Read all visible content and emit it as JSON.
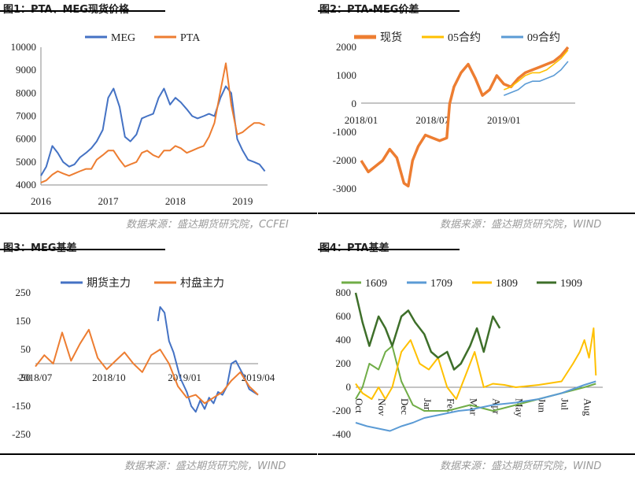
{
  "panels": {
    "p1": {
      "title": "图1：PTA、MEG现货价格",
      "source": "数据来源：盛达期货研究院，CCFEI"
    },
    "p2": {
      "title": "图2：PTA-MEG价差",
      "source": "数据来源：盛达期货研究院，WIND"
    },
    "p3": {
      "title": "图3：MEG基差",
      "source": "数据来源：盛达期货研究院，WIND"
    },
    "p4": {
      "title": "图4：PTA基差",
      "source": "数据来源：盛达期货研究院，WIND"
    }
  },
  "colors": {
    "blue": "#4472c4",
    "orange": "#ed7d31",
    "gold": "#ffc000",
    "lightblue": "#5b9bd5",
    "green": "#70ad47",
    "darkgreen": "#3e6f2a"
  },
  "chart_data": [
    {
      "type": "line",
      "title": "",
      "x_ticks": [
        "2016",
        "2017",
        "2018",
        "2019"
      ],
      "ylim": [
        4000,
        10000
      ],
      "y_ticks": [
        4000,
        5000,
        6000,
        7000,
        8000,
        9000,
        10000
      ],
      "legend_position": "top",
      "x": [
        2016.0,
        2016.08,
        2016.17,
        2016.25,
        2016.33,
        2016.42,
        2016.5,
        2016.58,
        2016.67,
        2016.75,
        2016.83,
        2016.92,
        2017.0,
        2017.08,
        2017.17,
        2017.25,
        2017.33,
        2017.42,
        2017.5,
        2017.58,
        2017.67,
        2017.75,
        2017.83,
        2017.92,
        2018.0,
        2018.08,
        2018.17,
        2018.25,
        2018.33,
        2018.42,
        2018.5,
        2018.58,
        2018.67,
        2018.75,
        2018.83,
        2018.92,
        2019.0,
        2019.08,
        2019.17,
        2019.25,
        2019.33
      ],
      "series": [
        {
          "name": "MEG",
          "values": [
            4400,
            4800,
            5700,
            5400,
            5000,
            4800,
            4900,
            5200,
            5400,
            5600,
            5900,
            6400,
            7800,
            8200,
            7400,
            6100,
            5900,
            6200,
            6900,
            7000,
            7100,
            7800,
            8200,
            7500,
            7800,
            7600,
            7300,
            7000,
            6900,
            7000,
            7100,
            7000,
            7800,
            8300,
            8000,
            6000,
            5500,
            5100,
            5000,
            4900,
            4600
          ]
        },
        {
          "name": "PTA",
          "values": [
            4100,
            4200,
            4450,
            4600,
            4500,
            4400,
            4500,
            4600,
            4700,
            4700,
            5100,
            5300,
            5500,
            5500,
            5100,
            4800,
            4900,
            5000,
            5400,
            5500,
            5300,
            5200,
            5500,
            5500,
            5700,
            5600,
            5400,
            5500,
            5600,
            5700,
            6100,
            6700,
            8100,
            9300,
            7500,
            6200,
            6300,
            6500,
            6700,
            6700,
            6600
          ]
        }
      ]
    },
    {
      "type": "line",
      "title": "",
      "x_ticks": [
        "2018/01",
        "2018/07",
        "2019/01"
      ],
      "ylim": [
        -3000,
        2000
      ],
      "y_ticks": [
        -3000,
        -2000,
        -1000,
        0,
        1000,
        2000
      ],
      "legend_position": "top",
      "series": [
        {
          "name": "现货",
          "x": [
            0,
            0.05,
            0.1,
            0.15,
            0.2,
            0.25,
            0.3,
            0.33,
            0.36,
            0.4,
            0.45,
            0.5,
            0.55,
            0.6,
            0.62,
            0.65,
            0.7,
            0.75,
            0.8,
            0.85,
            0.9,
            0.95,
            1.0,
            1.05,
            1.1,
            1.15,
            1.2,
            1.25,
            1.3,
            1.35,
            1.4,
            1.45
          ],
          "values": [
            -2000,
            -2400,
            -2200,
            -2000,
            -1600,
            -1900,
            -2800,
            -2900,
            -2000,
            -1500,
            -1100,
            -1200,
            -1300,
            -1200,
            0,
            600,
            1100,
            1400,
            900,
            300,
            500,
            1000,
            700,
            600,
            900,
            1100,
            1200,
            1300,
            1400,
            1500,
            1700,
            2000
          ]
        },
        {
          "name": "05合约",
          "x": [
            1.0,
            1.05,
            1.1,
            1.15,
            1.2,
            1.25,
            1.3,
            1.35,
            1.4,
            1.45
          ],
          "values": [
            500,
            600,
            800,
            1000,
            1100,
            1100,
            1200,
            1400,
            1600,
            1900
          ]
        },
        {
          "name": "09合约",
          "x": [
            1.0,
            1.05,
            1.1,
            1.15,
            1.2,
            1.25,
            1.3,
            1.35,
            1.4,
            1.45
          ],
          "values": [
            300,
            400,
            500,
            700,
            800,
            800,
            900,
            1000,
            1200,
            1500
          ]
        }
      ],
      "x_tick_positions": [
        0.0,
        0.5,
        1.0
      ]
    },
    {
      "type": "line",
      "title": "",
      "x_ticks": [
        "2018/07",
        "2018/10",
        "2019/01",
        "2019/04"
      ],
      "ylim": [
        -250,
        250
      ],
      "y_ticks": [
        -250,
        -150,
        -50,
        50,
        150,
        250
      ],
      "legend_position": "top",
      "series": [
        {
          "name": "期货主力",
          "x": [
            0.55,
            0.56,
            0.58,
            0.6,
            0.62,
            0.65,
            0.68,
            0.7,
            0.72,
            0.74,
            0.76,
            0.78,
            0.8,
            0.82,
            0.84,
            0.86,
            0.88,
            0.9,
            0.92,
            0.94,
            0.96,
            0.98,
            1.0
          ],
          "values": [
            150,
            200,
            180,
            80,
            40,
            -50,
            -100,
            -150,
            -170,
            -130,
            -160,
            -120,
            -140,
            -100,
            -110,
            -80,
            0,
            10,
            -20,
            -50,
            -90,
            -100,
            -110
          ]
        },
        {
          "name": "村盘主力",
          "x": [
            0,
            0.04,
            0.08,
            0.12,
            0.16,
            0.2,
            0.24,
            0.28,
            0.32,
            0.36,
            0.4,
            0.44,
            0.48,
            0.52,
            0.56,
            0.6,
            0.64,
            0.68,
            0.72,
            0.76,
            0.8,
            0.84,
            0.88,
            0.92,
            0.96,
            1.0
          ],
          "values": [
            -10,
            30,
            0,
            110,
            10,
            70,
            120,
            20,
            -20,
            10,
            40,
            0,
            -30,
            30,
            50,
            0,
            -80,
            -120,
            -110,
            -140,
            -120,
            -100,
            -60,
            -30,
            -80,
            -110
          ]
        }
      ],
      "x_tick_positions": [
        0.0,
        0.33,
        0.67,
        1.0
      ]
    },
    {
      "type": "line",
      "title": "",
      "x_ticks": [
        "Oct",
        "Nov",
        "Dec",
        "Jan",
        "Feb",
        "Mar",
        "Apr",
        "May",
        "Jun",
        "Jul",
        "Aug"
      ],
      "ylim": [
        -400,
        800
      ],
      "y_ticks": [
        -400,
        -200,
        0,
        200,
        400,
        600,
        800
      ],
      "legend_position": "top",
      "series": [
        {
          "name": "1609",
          "x": [
            0,
            0.3,
            0.6,
            1.0,
            1.3,
            1.6,
            2.0,
            2.5,
            3.0,
            4.0,
            5.0,
            6.0,
            7.0,
            8.0,
            9.0,
            10.0,
            10.5
          ],
          "values": [
            -100,
            0,
            200,
            150,
            300,
            350,
            50,
            -150,
            -200,
            -200,
            -150,
            -200,
            -150,
            -100,
            -50,
            0,
            30
          ]
        },
        {
          "name": "1709",
          "x": [
            0,
            0.5,
            1.0,
            1.5,
            2.0,
            2.5,
            3.0,
            3.5,
            4.0,
            4.5,
            5.0,
            6.0,
            7.0,
            8.0,
            9.0,
            10.0,
            10.5
          ],
          "values": [
            -300,
            -330,
            -350,
            -370,
            -330,
            -300,
            -260,
            -240,
            -220,
            -200,
            -190,
            -150,
            -130,
            -100,
            -50,
            20,
            50
          ]
        },
        {
          "name": "1809",
          "x": [
            0,
            0.3,
            0.7,
            1.0,
            1.3,
            1.6,
            2.0,
            2.4,
            2.8,
            3.2,
            3.6,
            4.0,
            4.4,
            4.8,
            5.2,
            5.6,
            6.0,
            6.5,
            7.0,
            8.0,
            9.0,
            9.5,
            9.8,
            10.0,
            10.2,
            10.4,
            10.5
          ],
          "values": [
            30,
            -50,
            -100,
            0,
            -100,
            0,
            300,
            400,
            200,
            150,
            250,
            0,
            -100,
            100,
            300,
            0,
            30,
            20,
            0,
            20,
            50,
            200,
            300,
            400,
            250,
            500,
            100
          ]
        },
        {
          "name": "1909",
          "x": [
            0,
            0.3,
            0.6,
            1.0,
            1.3,
            1.6,
            2.0,
            2.3,
            2.6,
            3.0,
            3.3,
            3.6,
            4.0,
            4.3,
            4.6,
            5.0,
            5.3,
            5.6,
            6.0,
            6.3
          ],
          "values": [
            800,
            550,
            350,
            600,
            500,
            350,
            600,
            650,
            550,
            450,
            300,
            250,
            300,
            150,
            200,
            350,
            500,
            300,
            600,
            500
          ]
        }
      ],
      "x_tick_positions": [
        0.0,
        1.0,
        2.0,
        3.0,
        4.0,
        5.0,
        6.0,
        7.0,
        8.0,
        9.0,
        10.0
      ]
    }
  ]
}
